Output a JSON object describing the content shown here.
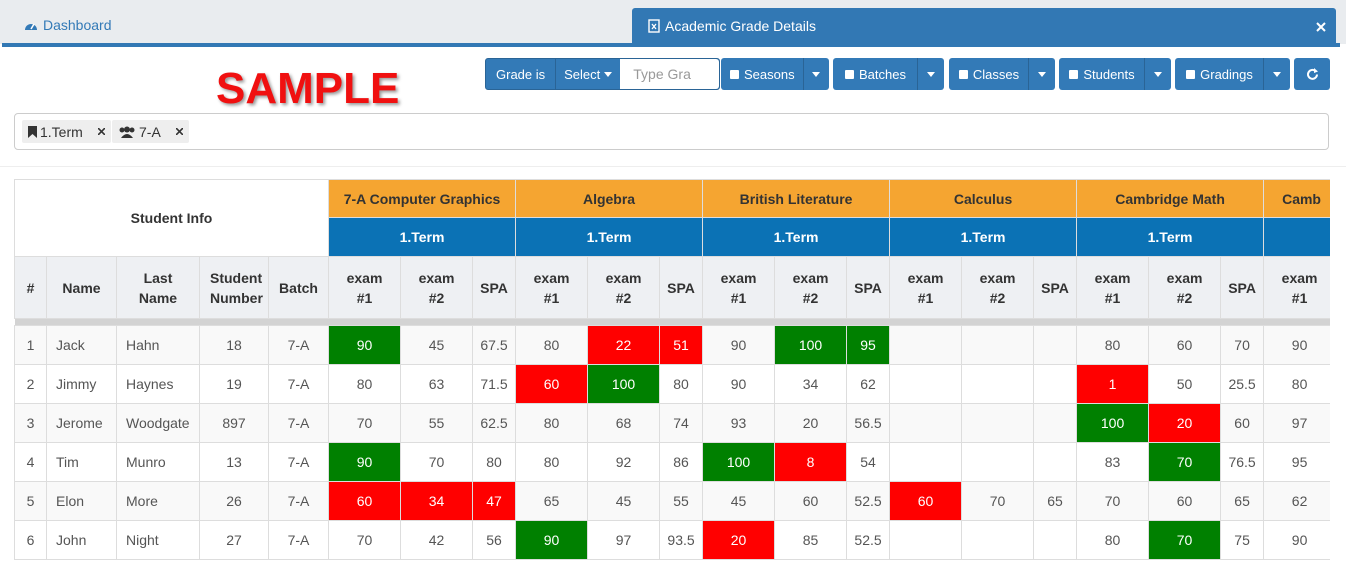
{
  "tabs": [
    {
      "label": "Dashboard"
    },
    {
      "label": "Academic Grade Details"
    }
  ],
  "watermark": "SAMPLE",
  "toolbar": {
    "grade_label": "Grade is",
    "select": "Select",
    "search_placeholder": "Type Gra",
    "buttons": [
      "Seasons",
      "Batches",
      "Classes",
      "Students",
      "Gradings"
    ]
  },
  "filters": [
    "1.Term",
    "7-A"
  ],
  "table": {
    "student_info": "Student Info",
    "student_columns": [
      "#",
      "Name",
      "Last Name",
      "Student Number",
      "Batch"
    ],
    "subjects": [
      {
        "name": "7-A Computer Graphics",
        "term": "1.Term",
        "columns": [
          "exam #1",
          "exam #2",
          "SPA"
        ]
      },
      {
        "name": "Algebra",
        "term": "1.Term",
        "columns": [
          "exam #1",
          "exam #2",
          "SPA"
        ]
      },
      {
        "name": "British Literature",
        "term": "1.Term",
        "columns": [
          "exam #1",
          "exam #2",
          "SPA"
        ]
      },
      {
        "name": "Calculus",
        "term": "1.Term",
        "columns": [
          "exam #1",
          "exam #2",
          "SPA"
        ]
      },
      {
        "name": "Cambridge Math",
        "term": "1.Term",
        "columns": [
          "exam #1",
          "exam #2",
          "SPA"
        ]
      },
      {
        "name": "Camb",
        "columns": [
          "exam #1"
        ]
      }
    ],
    "rows": [
      {
        "cells": [
          1,
          "Jack",
          "Hahn",
          18,
          "7-A"
        ],
        "grades": [
          90,
          45,
          67.5,
          80,
          22,
          51,
          90,
          100,
          95,
          null,
          null,
          null,
          80,
          60,
          70,
          90
        ],
        "colors": [
          "green",
          null,
          null,
          null,
          "red",
          "red",
          null,
          "green",
          "green",
          null,
          null,
          null,
          null,
          null,
          null,
          null
        ]
      },
      {
        "cells": [
          2,
          "Jimmy",
          "Haynes",
          19,
          "7-A"
        ],
        "grades": [
          80,
          63,
          71.5,
          60,
          100,
          80,
          90,
          34,
          62,
          null,
          null,
          null,
          1,
          50,
          25.5,
          80
        ],
        "colors": [
          null,
          null,
          null,
          "red",
          "green",
          null,
          null,
          null,
          null,
          null,
          null,
          null,
          "red",
          null,
          null,
          null
        ]
      },
      {
        "cells": [
          3,
          "Jerome",
          "Woodgate",
          897,
          "7-A"
        ],
        "grades": [
          70,
          55,
          62.5,
          80,
          68,
          74,
          93,
          20,
          56.5,
          null,
          null,
          null,
          100,
          20,
          60,
          97
        ],
        "colors": [
          null,
          null,
          null,
          null,
          null,
          null,
          null,
          null,
          null,
          null,
          null,
          null,
          "green",
          "red",
          null,
          null
        ]
      },
      {
        "cells": [
          4,
          "Tim",
          "Munro",
          13,
          "7-A"
        ],
        "grades": [
          90,
          70,
          80,
          80,
          92,
          86,
          100,
          8,
          54,
          null,
          null,
          null,
          83,
          70,
          76.5,
          95
        ],
        "colors": [
          "green",
          null,
          null,
          null,
          null,
          null,
          "green",
          "red",
          null,
          null,
          null,
          null,
          null,
          "green",
          null,
          null
        ]
      },
      {
        "cells": [
          5,
          "Elon",
          "More",
          26,
          "7-A"
        ],
        "grades": [
          60,
          34,
          47,
          65,
          45,
          55,
          45,
          60,
          52.5,
          60,
          70,
          65,
          70,
          60,
          65,
          62
        ],
        "colors": [
          "red",
          "red",
          "red",
          null,
          null,
          null,
          null,
          null,
          null,
          "red",
          null,
          null,
          null,
          null,
          null,
          null
        ]
      },
      {
        "cells": [
          6,
          "John",
          "Night",
          27,
          "7-A"
        ],
        "grades": [
          70,
          42,
          56,
          90,
          97,
          93.5,
          20,
          85,
          52.5,
          null,
          null,
          null,
          80,
          70,
          75,
          90
        ],
        "colors": [
          null,
          null,
          null,
          "green",
          null,
          null,
          "red",
          null,
          null,
          null,
          null,
          null,
          null,
          "green",
          null,
          null
        ]
      }
    ]
  }
}
